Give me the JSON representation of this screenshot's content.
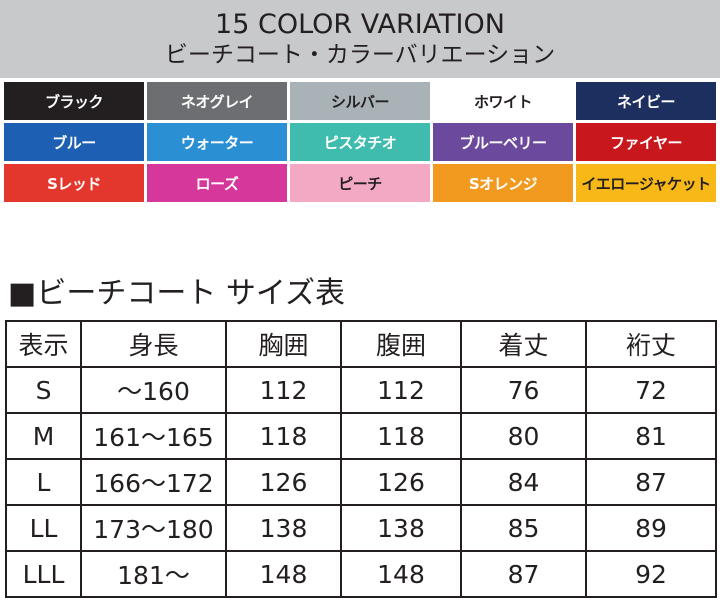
{
  "header": {
    "title": "15 COLOR VARIATION",
    "subtitle": "ビーチコート・カラーバリエーション"
  },
  "colors": [
    {
      "label": "ブラック",
      "color": "#231f20",
      "text_color": "#ffffff"
    },
    {
      "label": "ネオグレイ",
      "color": "#6d6e71",
      "text_color": "#ffffff"
    },
    {
      "label": "シルバー",
      "color": "#a9b3b7",
      "text_color": "#231f20"
    },
    {
      "label": "ホワイト",
      "color": "#ffffff",
      "text_color": "#231f20"
    },
    {
      "label": "ネイビー",
      "color": "#1c2f5e",
      "text_color": "#ffffff"
    },
    {
      "label": "ブルー",
      "color": "#1d5fb3",
      "text_color": "#ffffff"
    },
    {
      "label": "ウォーター",
      "color": "#2b8fd4",
      "text_color": "#ffffff"
    },
    {
      "label": "ピスタチオ",
      "color": "#3fbcae",
      "text_color": "#ffffff"
    },
    {
      "label": "ブルーベリー",
      "color": "#6b4a9e",
      "text_color": "#ffffff"
    },
    {
      "label": "ファイヤー",
      "color": "#c9171e",
      "text_color": "#ffffff"
    },
    {
      "label": "Sレッド",
      "color": "#e3372d",
      "text_color": "#ffffff"
    },
    {
      "label": "ローズ",
      "color": "#d5389a",
      "text_color": "#ffffff"
    },
    {
      "label": "ピーチ",
      "color": "#f3a8c4",
      "text_color": "#231f20"
    },
    {
      "label": "Sオレンジ",
      "color": "#f29a1f",
      "text_color": "#ffffff"
    },
    {
      "label": "イエロージャケット",
      "color": "#f7b818",
      "text_color": "#231f20"
    }
  ],
  "size_table": {
    "title": "■ビーチコート サイズ表",
    "columns": [
      "表示",
      "身長",
      "胸囲",
      "腹囲",
      "着丈",
      "裄丈"
    ],
    "rows": [
      [
        "S",
        "～160",
        "112",
        "112",
        "76",
        "72"
      ],
      [
        "M",
        "161～165",
        "118",
        "118",
        "80",
        "81"
      ],
      [
        "L",
        "166～172",
        "126",
        "126",
        "84",
        "87"
      ],
      [
        "LL",
        "173～180",
        "138",
        "138",
        "85",
        "89"
      ],
      [
        "LLL",
        "181～",
        "148",
        "148",
        "87",
        "92"
      ]
    ]
  }
}
